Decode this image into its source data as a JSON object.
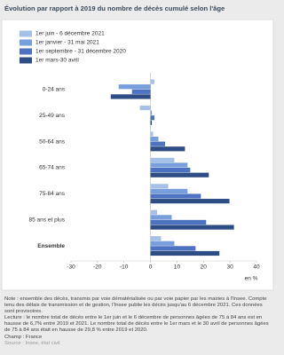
{
  "chart_data": {
    "type": "barh",
    "title": "Évolution par rapport à 2019 du nombre de décès cumulé selon l'âge",
    "categories": [
      "0-24 ans",
      "25-49 ans",
      "50-64 ans",
      "65-74 ans",
      "75-84 ans",
      "85 ans et plus",
      "Ensemble"
    ],
    "series": [
      {
        "name": "1er juin - 6 décembre 2021",
        "color": "#a7c0e8",
        "values": [
          1.5,
          -4,
          1,
          9,
          6.7,
          2.5,
          4
        ]
      },
      {
        "name": "1er janvier - 31 mai 2021",
        "color": "#789edb",
        "values": [
          -12,
          0.5,
          3,
          14,
          14,
          8,
          9
        ]
      },
      {
        "name": "1er septembre - 31 décembre 2020",
        "color": "#4d72bf",
        "values": [
          -7,
          1.5,
          5.5,
          15,
          19,
          21,
          17
        ]
      },
      {
        "name": "1er mars-30 avril",
        "color": "#2e4d84",
        "values": [
          -15,
          0.5,
          13,
          22,
          29.8,
          31.5,
          26
        ]
      }
    ],
    "xlim": [
      -30,
      40
    ],
    "xticks": [
      -30,
      -20,
      -10,
      0,
      10,
      20,
      30,
      40
    ],
    "xlabel": "en %",
    "grid": false
  },
  "notes": [
    "Note : ensemble des décès, transmis par voie dématérialisée ou par voie papier par les mairies à l'Insee. Compte tenu des délais de transmission et de gestion, l'Insee publie les décès jusqu'au 6 décembre 2021. Ces données sont provisoires.",
    "Lecture : le nombre total de décès entre le 1er juin et le 6 décembre de personnes âgées de 75 à 84 ans est en hausse de 6,7% entre 2019 et 2021. Le nombre total de décès entre le 1er mars et le 30 avril de personnes âgées de 75 à 84 ans était en hausse de 29,8 % entre 2019 et 2020.",
    "Champ : France"
  ],
  "source": "Source : Insee, état civil"
}
